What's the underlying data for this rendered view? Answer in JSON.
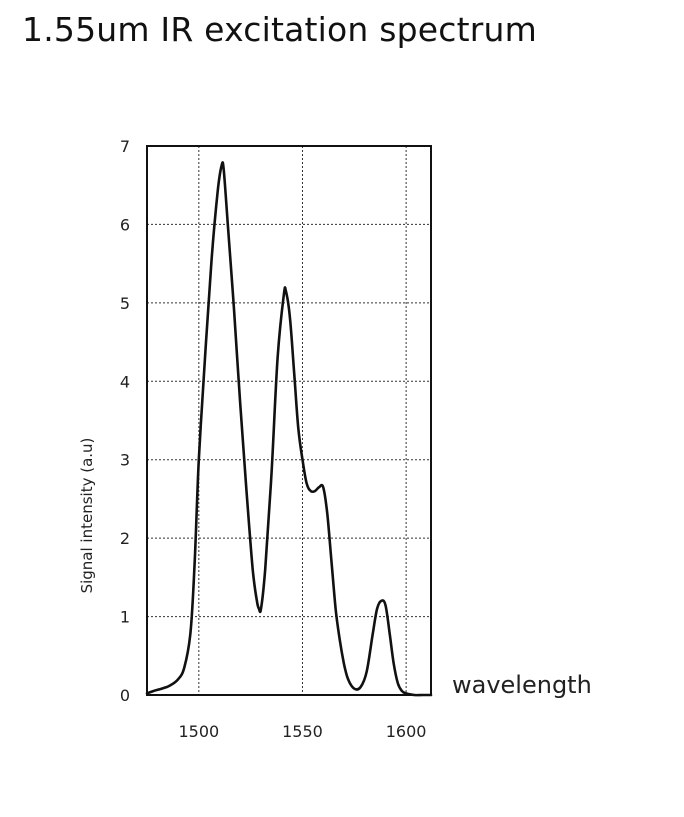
{
  "title": "1.55um IR excitation spectrum",
  "chart_data": {
    "type": "line",
    "title": "1.55um IR excitation spectrum",
    "xlabel": "wavelength",
    "ylabel": "Signal intensity (a.u)",
    "xlim": [
      1475,
      1612
    ],
    "ylim": [
      0,
      7
    ],
    "x_ticks": [
      1500,
      1550,
      1600
    ],
    "y_ticks": [
      0,
      1,
      2,
      3,
      4,
      5,
      6,
      7
    ],
    "grid": true,
    "legend": "none",
    "line_color": "#111111",
    "series": [
      {
        "x": [
          1475,
          1478,
          1482,
          1486,
          1490,
          1493,
          1496,
          1498,
          1500,
          1503,
          1506,
          1509,
          1511,
          1512,
          1514,
          1517,
          1520,
          1523,
          1526,
          1528,
          1529,
          1530,
          1532,
          1535,
          1538,
          1541,
          1542,
          1544,
          1546,
          1548,
          1550,
          1552,
          1554,
          1556,
          1558,
          1560,
          1562,
          1564,
          1566,
          1568,
          1570,
          1572,
          1575,
          1578,
          1581,
          1584,
          1586,
          1588,
          1590,
          1592,
          1594,
          1596,
          1598,
          1600,
          1604,
          1608,
          1612
        ],
        "y": [
          0.02,
          0.05,
          0.08,
          0.12,
          0.2,
          0.35,
          0.8,
          1.7,
          3.0,
          4.3,
          5.5,
          6.4,
          6.75,
          6.7,
          6.0,
          4.9,
          3.7,
          2.6,
          1.6,
          1.2,
          1.1,
          1.1,
          1.6,
          2.8,
          4.3,
          5.1,
          5.15,
          4.8,
          4.1,
          3.4,
          3.0,
          2.7,
          2.6,
          2.6,
          2.65,
          2.65,
          2.3,
          1.7,
          1.1,
          0.7,
          0.4,
          0.2,
          0.08,
          0.1,
          0.3,
          0.8,
          1.1,
          1.2,
          1.15,
          0.8,
          0.4,
          0.15,
          0.05,
          0.02,
          0.0,
          0.0,
          0.0
        ]
      }
    ]
  }
}
